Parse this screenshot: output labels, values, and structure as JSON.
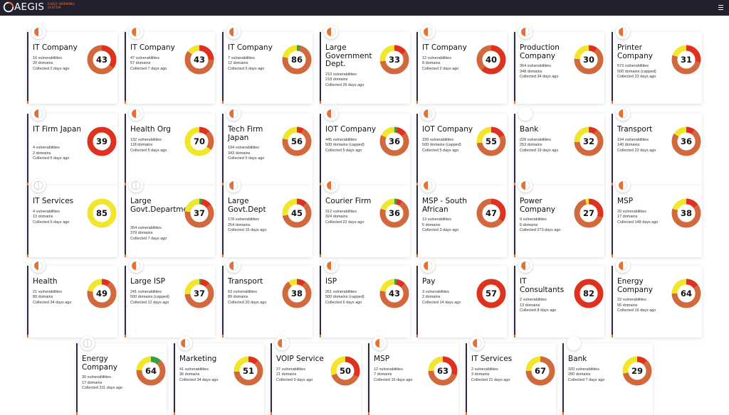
{
  "header": {
    "logo_text": "AEGIS",
    "tagline": "EARLY WARNING SYSTEM",
    "menu_icon": "hamburger-menu-icon"
  },
  "colors": {
    "navbar": "#22202f",
    "accent_orange": "#e8702f",
    "severity_critical": "#e0301e",
    "severity_high": "#d2693d",
    "severity_medium": "#f2e62a",
    "severity_low": "#3c9e3c",
    "card_bar": "#2d2a42"
  },
  "cards": [
    {
      "title": "IT Company",
      "vulnerabilities": "16 vulnerabilities",
      "domains": "20 domains",
      "collected": "Collected 2 days ago",
      "score": "43",
      "badge": "orange-half",
      "segments": [
        [
          "#e0301e",
          0.35
        ],
        [
          "#d2693d",
          0.65
        ]
      ]
    },
    {
      "title": "IT Company",
      "vulnerabilities": "47 vulnerabilities",
      "domains": "57 domains",
      "collected": "Collected 7 days ago",
      "score": "43",
      "badge": "orange-half",
      "segments": [
        [
          "#e0301e",
          0.25
        ],
        [
          "#d2693d",
          0.6
        ],
        [
          "#f2e62a",
          0.15
        ]
      ]
    },
    {
      "title": "IT Company",
      "vulnerabilities": "7 vulnerabilities",
      "domains": "12 domains",
      "collected": "Collected 5 days ago",
      "score": "86",
      "badge": "orange-half",
      "segments": [
        [
          "#3c9e3c",
          0.04
        ],
        [
          "#d2693d",
          0.74
        ],
        [
          "#f2e62a",
          0.22
        ]
      ]
    },
    {
      "title": "Large Government Dept.",
      "vulnerabilities": "210 vulnerabilities",
      "domains": "218 domains",
      "collected": "Collected 26 days ago",
      "score": "33",
      "badge": "orange-half",
      "segments": [
        [
          "#e0301e",
          0.15
        ],
        [
          "#d2693d",
          0.58
        ],
        [
          "#f2e62a",
          0.27
        ]
      ]
    },
    {
      "title": "IT Company",
      "vulnerabilities": "12 vulnerabilities",
      "domains": "8 domains",
      "collected": "Collected 2 days ago",
      "score": "40",
      "badge": "orange-half",
      "segments": [
        [
          "#e0301e",
          0.62
        ],
        [
          "#d2693d",
          0.38
        ]
      ]
    },
    {
      "title": "Production Company",
      "vulnerabilities": "364 vulnerabilities",
      "domains": "348 domains",
      "collected": "Collected 34 days ago",
      "score": "30",
      "badge": "orange-half",
      "segments": [
        [
          "#e0301e",
          0.1
        ],
        [
          "#d2693d",
          0.66
        ],
        [
          "#f2e62a",
          0.24
        ]
      ]
    },
    {
      "title": "Printer Company",
      "vulnerabilities": "573 vulnerabilities",
      "domains": "500 domains (capped)",
      "collected": "Collected 23 days ago",
      "score": "31",
      "badge": "orange-half",
      "segments": [
        [
          "#e0301e",
          0.28
        ],
        [
          "#d2693d",
          0.52
        ],
        [
          "#f2e62a",
          0.2
        ]
      ]
    },
    {
      "title": "IT Firm Japan",
      "vulnerabilities": "4 vulnerabilities",
      "domains": "2 domains",
      "collected": "Collected 5 days ago",
      "score": "39",
      "badge": "orange-half",
      "segments": [
        [
          "#e0301e",
          1.0
        ]
      ]
    },
    {
      "title": "Health Org",
      "vulnerabilities": "132 vulnerabilities",
      "domains": "118 domains",
      "collected": "Collected 5 days ago",
      "score": "70",
      "badge": "orange-half",
      "segments": [
        [
          "#e0301e",
          0.12
        ],
        [
          "#d2693d",
          0.23
        ],
        [
          "#f2e62a",
          0.65
        ]
      ]
    },
    {
      "title": "Tech Firm Japan",
      "vulnerabilities": "194 vulnerabilities",
      "domains": "343 domains",
      "collected": "Collected 5 days ago",
      "score": "56",
      "badge": "orange-half",
      "segments": [
        [
          "#e0301e",
          0.08
        ],
        [
          "#d2693d",
          0.7
        ],
        [
          "#f2e62a",
          0.22
        ]
      ]
    },
    {
      "title": "IOT Company",
      "vulnerabilities": "445 vulnerabilities",
      "domains": "500 domains (capped)",
      "collected": "Collected 5 days ago",
      "score": "36",
      "badge": "orange-half",
      "segments": [
        [
          "#3c9e3c",
          0.03
        ],
        [
          "#e0301e",
          0.12
        ],
        [
          "#d2693d",
          0.67
        ],
        [
          "#f2e62a",
          0.18
        ]
      ]
    },
    {
      "title": "IOT Company",
      "vulnerabilities": "339 vulnerabilities",
      "domains": "500 domains (capped)",
      "collected": "Collected 5 days ago",
      "score": "55",
      "badge": "orange-half",
      "segments": [
        [
          "#e0301e",
          0.18
        ],
        [
          "#d2693d",
          0.55
        ],
        [
          "#f2e62a",
          0.27
        ]
      ]
    },
    {
      "title": "Bank",
      "vulnerabilities": "228 vulnerabilities",
      "domains": "253 domains",
      "collected": "Collected 19 days ago",
      "score": "32",
      "badge": "blank",
      "segments": [
        [
          "#e0301e",
          0.1
        ],
        [
          "#d2693d",
          0.64
        ],
        [
          "#f2e62a",
          0.26
        ]
      ]
    },
    {
      "title": "Transport",
      "vulnerabilities": "194 vulnerabilities",
      "domains": "140 domains",
      "collected": "Collected 23 days ago",
      "score": "36",
      "badge": "orange-half",
      "segments": [
        [
          "#e0301e",
          0.1
        ],
        [
          "#d2693d",
          0.74
        ],
        [
          "#f2e62a",
          0.16
        ]
      ]
    },
    {
      "title": "IT Services",
      "vulnerabilities": "4 vulnerabilities",
      "domains": "13 domains",
      "collected": "Collected 5 days ago",
      "score": "85",
      "badge": "outline",
      "segments": [
        [
          "#f2e62a",
          1.0
        ]
      ]
    },
    {
      "title": "Large Govt.Department",
      "vulnerabilities": "354 vulnerabilities",
      "domains": "379 domains",
      "collected": "Collected 7 days ago",
      "score": "37",
      "badge": "outline",
      "segments": [
        [
          "#3c9e3c",
          0.03
        ],
        [
          "#e0301e",
          0.12
        ],
        [
          "#d2693d",
          0.62
        ],
        [
          "#f2e62a",
          0.23
        ]
      ]
    },
    {
      "title": "Large Govt.Dept",
      "vulnerabilities": "178 vulnerabilities",
      "domains": "254 domains",
      "collected": "Collected 15 days ago",
      "score": "45",
      "badge": "orange-half",
      "segments": [
        [
          "#e0301e",
          0.12
        ],
        [
          "#d2693d",
          0.6
        ],
        [
          "#f2e62a",
          0.28
        ]
      ]
    },
    {
      "title": "Courier Firm",
      "vulnerabilities": "312 vulnerabilities",
      "domains": "324 domains",
      "collected": "Collected 22 days ago",
      "score": "36",
      "badge": "orange-half",
      "segments": [
        [
          "#3c9e3c",
          0.03
        ],
        [
          "#e0301e",
          0.06
        ],
        [
          "#d2693d",
          0.71
        ],
        [
          "#f2e62a",
          0.2
        ]
      ]
    },
    {
      "title": "MSP - South African",
      "vulnerabilities": "13 vulnerabilities",
      "domains": "5 domains",
      "collected": "Collected 3 days ago",
      "score": "47",
      "badge": "orange-half",
      "segments": [
        [
          "#e0301e",
          0.35
        ],
        [
          "#d2693d",
          0.65
        ]
      ]
    },
    {
      "title": "Power Company",
      "vulnerabilities": "9 vulnerabilities",
      "domains": "5 domains",
      "collected": "Collected 273 days ago",
      "score": "27",
      "badge": "orange-half",
      "segments": [
        [
          "#e0301e",
          0.3
        ],
        [
          "#d2693d",
          0.66
        ],
        [
          "#f2e62a",
          0.04
        ]
      ]
    },
    {
      "title": "MSP",
      "vulnerabilities": "20 vulnerabilities",
      "domains": "17 domains",
      "collected": "Collected 148 days ago",
      "score": "38",
      "badge": "orange-half",
      "segments": [
        [
          "#e0301e",
          0.15
        ],
        [
          "#d2693d",
          0.65
        ],
        [
          "#f2e62a",
          0.2
        ]
      ]
    },
    {
      "title": "Health",
      "vulnerabilities": "21 vulnerabilities",
      "domains": "80 domains",
      "collected": "Collected 34 days ago",
      "score": "49",
      "badge": "orange-half",
      "segments": [
        [
          "#e0301e",
          0.1
        ],
        [
          "#d2693d",
          0.68
        ],
        [
          "#f2e62a",
          0.22
        ]
      ]
    },
    {
      "title": "Large ISP",
      "vulnerabilities": "241 vulnerabilities",
      "domains": "500 domains (capped)",
      "collected": "Collected 12 days ago",
      "score": "37",
      "badge": "orange-half",
      "segments": [
        [
          "#3c9e3c",
          0.02
        ],
        [
          "#e0301e",
          0.1
        ],
        [
          "#d2693d",
          0.62
        ],
        [
          "#f2e62a",
          0.26
        ]
      ]
    },
    {
      "title": "Transport",
      "vulnerabilities": "63 vulnerabilities",
      "domains": "89 domains",
      "collected": "Collected 20 days ago",
      "score": "38",
      "badge": "orange-half",
      "segments": [
        [
          "#e0301e",
          0.1
        ],
        [
          "#d2693d",
          0.8
        ],
        [
          "#f2e62a",
          0.1
        ]
      ]
    },
    {
      "title": "ISP",
      "vulnerabilities": "261 vulnerabilities",
      "domains": "500 domains (capped)",
      "collected": "Collected 6 days ago",
      "score": "43",
      "badge": "orange-half",
      "segments": [
        [
          "#3c9e3c",
          0.03
        ],
        [
          "#e0301e",
          0.1
        ],
        [
          "#d2693d",
          0.65
        ],
        [
          "#f2e62a",
          0.22
        ]
      ]
    },
    {
      "title": "Pay",
      "vulnerabilities": "3 vulnerabilities",
      "domains": "2 domains",
      "collected": "Collected 14 days ago",
      "score": "57",
      "badge": "orange-half",
      "segments": [
        [
          "#e0301e",
          1.0
        ]
      ]
    },
    {
      "title": "IT Consultants",
      "vulnerabilities": "2 vulnerabilities",
      "domains": "13 domains",
      "collected": "Collected 8 days ago",
      "score": "82",
      "badge": "orange-half",
      "segments": [
        [
          "#e0301e",
          1.0
        ]
      ]
    },
    {
      "title": "Energy Company",
      "vulnerabilities": "22 vulnerabilities",
      "domains": "55 domains",
      "collected": "Collected 16 days ago",
      "score": "64",
      "badge": "orange-half",
      "segments": [
        [
          "#e0301e",
          0.15
        ],
        [
          "#d2693d",
          0.6
        ],
        [
          "#f2e62a",
          0.25
        ]
      ]
    },
    {
      "title": "Energy Company",
      "vulnerabilities": "30 vulnerabilities",
      "domains": "17 domains",
      "collected": "Collected 311 days ago",
      "score": "64",
      "badge": "outline",
      "segments": [
        [
          "#3c9e3c",
          0.12
        ],
        [
          "#d2693d",
          0.64
        ],
        [
          "#f2e62a",
          0.24
        ]
      ]
    },
    {
      "title": "Marketing",
      "vulnerabilities": "41 vulnerabilities",
      "domains": "36 domains",
      "collected": "Collected 34 days ago",
      "score": "51",
      "badge": "orange-half",
      "segments": [
        [
          "#e0301e",
          0.12
        ],
        [
          "#d2693d",
          0.62
        ],
        [
          "#f2e62a",
          0.26
        ]
      ]
    },
    {
      "title": "VOIP Service",
      "vulnerabilities": "27 vulnerabilities",
      "domains": "21 domains",
      "collected": "Collected 9 days ago",
      "score": "50",
      "badge": "orange-half",
      "segments": [
        [
          "#e0301e",
          0.32
        ],
        [
          "#d2693d",
          0.38
        ],
        [
          "#f2e62a",
          0.3
        ]
      ]
    },
    {
      "title": "MSP",
      "vulnerabilities": "12 vulnerabilities",
      "domains": "7 domains",
      "collected": "Collected 16 days ago",
      "score": "63",
      "badge": "orange-half",
      "segments": [
        [
          "#e0301e",
          0.3
        ],
        [
          "#d2693d",
          0.45
        ],
        [
          "#f2e62a",
          0.25
        ]
      ]
    },
    {
      "title": "IT Services",
      "vulnerabilities": "2 vulnerabilities",
      "domains": "3 domains",
      "collected": "Collected 21 days ago",
      "score": "67",
      "badge": "orange-half",
      "segments": [
        [
          "#d2693d",
          0.75
        ],
        [
          "#f2e62a",
          0.25
        ]
      ]
    },
    {
      "title": "Bank",
      "vulnerabilities": "320 vulnerabilities",
      "domains": "280 domains",
      "collected": "Collected 7 days ago",
      "score": "29",
      "badge": "blank",
      "segments": [
        [
          "#e0301e",
          0.12
        ],
        [
          "#d2693d",
          0.6
        ],
        [
          "#f2e62a",
          0.28
        ]
      ]
    }
  ]
}
